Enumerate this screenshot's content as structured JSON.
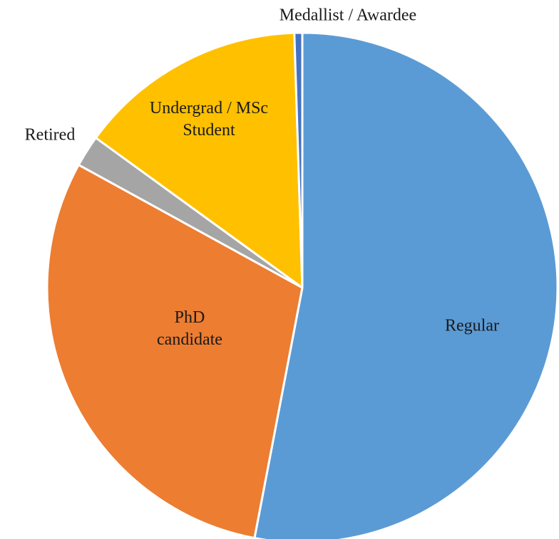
{
  "chart_data": {
    "type": "pie",
    "categories": [
      "Regular",
      "PhD candidate",
      "Retired",
      "Undergrad / MSc Student",
      "Medallist / Awardee"
    ],
    "values": [
      53,
      30,
      2,
      14.5,
      0.5
    ],
    "colors": [
      "#5b9bd5",
      "#ed7d31",
      "#a5a5a5",
      "#ffc000",
      "#4472c4"
    ]
  }
}
